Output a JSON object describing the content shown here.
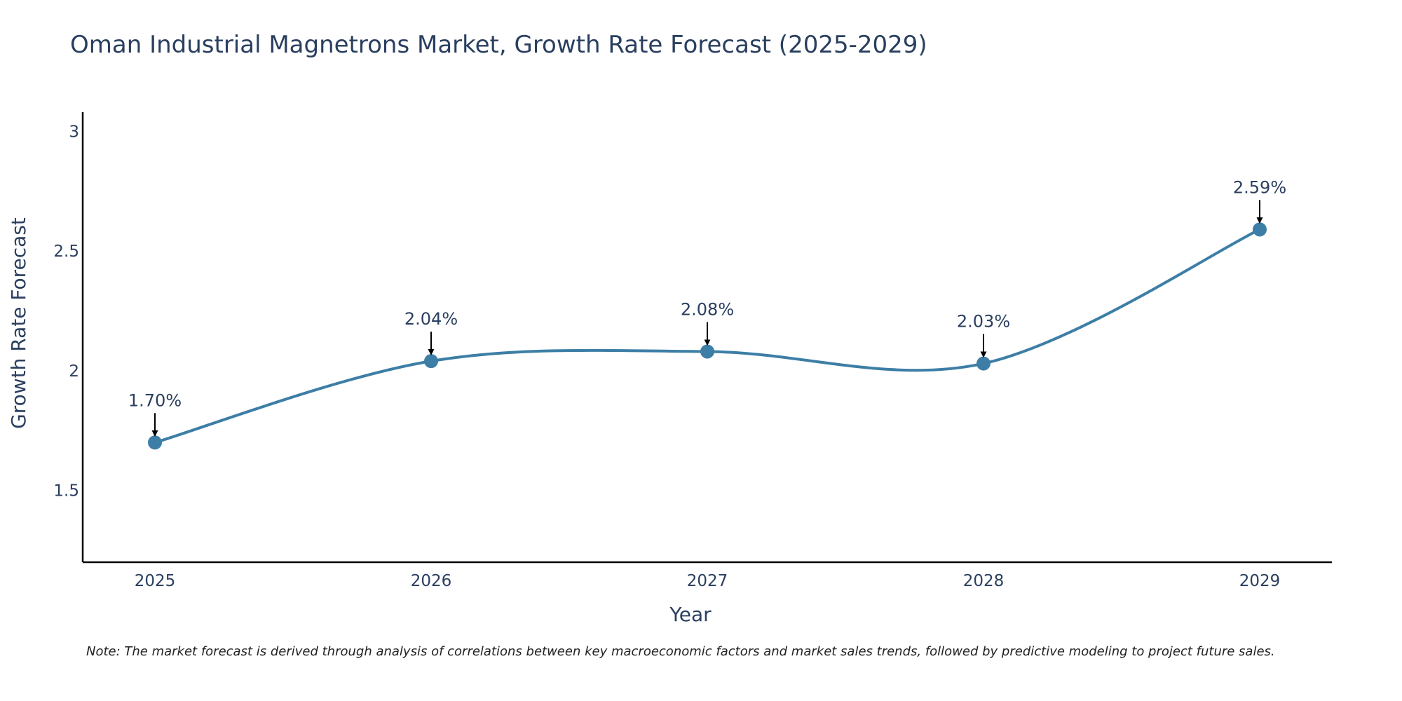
{
  "chart_data": {
    "type": "line",
    "title": "Oman Industrial Magnetrons Market, Growth Rate Forecast (2025-2029)",
    "xlabel": "Year",
    "ylabel": "Growth Rate Forecast",
    "categories": [
      "2025",
      "2026",
      "2027",
      "2028",
      "2029"
    ],
    "values": [
      1.7,
      2.04,
      2.08,
      2.03,
      2.59
    ],
    "data_labels": [
      "1.70%",
      "2.04%",
      "2.08%",
      "2.03%",
      "2.59%"
    ],
    "ylim": [
      1.2,
      3.08
    ],
    "yticks": [
      1.5,
      2,
      2.5,
      3
    ],
    "ytick_labels": [
      "1.5",
      "2",
      "2.5",
      "3"
    ],
    "grid": false,
    "line_color": "#3d7ea6",
    "marker_color": "#3d7ea6"
  },
  "footnote": "Note: The market forecast is derived through analysis of correlations between key macroeconomic factors and market sales trends, followed by predictive modeling to project future sales."
}
